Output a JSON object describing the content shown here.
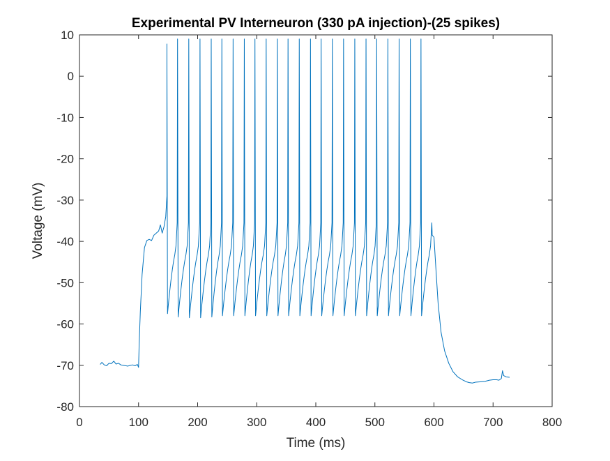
{
  "chart_data": {
    "type": "line",
    "title": "Experimental PV Interneuron (330 pA injection)-(25 spikes)",
    "xlabel": "Time (ms)",
    "ylabel": "Voltage (mV)",
    "xlim": [
      0,
      800
    ],
    "ylim": [
      -80,
      10
    ],
    "xticks": [
      0,
      100,
      200,
      300,
      400,
      500,
      600,
      700,
      800
    ],
    "yticks": [
      -80,
      -70,
      -60,
      -50,
      -40,
      -30,
      -20,
      -10,
      0,
      10
    ],
    "xtick_labels": [
      "0",
      "100",
      "200",
      "300",
      "400",
      "500",
      "600",
      "700",
      "800"
    ],
    "ytick_labels": [
      "-80",
      "-70",
      "-60",
      "-50",
      "-40",
      "-30",
      "-20",
      "-10",
      "0",
      "10"
    ],
    "grid": false,
    "line_color": "#0072BD",
    "spike_count": 25,
    "spike_times_ms": [
      148,
      166,
      185,
      204,
      223,
      241,
      260,
      279,
      297,
      316,
      335,
      353,
      372,
      391,
      409,
      428,
      447,
      466,
      485,
      503,
      522,
      541,
      560,
      578,
      597
    ],
    "spike_peaks_mv": [
      7.8,
      9.0,
      9.0,
      9.0,
      9.0,
      9.0,
      9.0,
      9.0,
      9.0,
      9.0,
      9.0,
      9.0,
      9.0,
      9.0,
      9.0,
      9.0,
      9.0,
      9.0,
      9.0,
      9.0,
      9.0,
      9.0,
      9.0,
      9.0,
      -38.5
    ],
    "trough_mv": [
      -57.5,
      -58.3,
      -58.5,
      -58.5,
      -58.3,
      -58.0,
      -58.0,
      -58.0,
      -58.0,
      -58.0,
      -58.0,
      -58.0,
      -58.0,
      -58.0,
      -58.0,
      -58.0,
      -58.0,
      -58.0,
      -58.0,
      -58.0,
      -58.0,
      -58.0,
      -58.0,
      -58.0
    ],
    "pre_stim": {
      "x": [
        35,
        38,
        42,
        46,
        50,
        54,
        58,
        62,
        66,
        70,
        74,
        78,
        82,
        86,
        90,
        94,
        98,
        100
      ],
      "y": [
        -69.8,
        -69.3,
        -69.9,
        -70.1,
        -69.5,
        -69.6,
        -69.0,
        -69.7,
        -69.5,
        -69.9,
        -70.0,
        -70.1,
        -70.2,
        -70.0,
        -69.9,
        -70.1,
        -69.8,
        -70.5
      ]
    },
    "depolarization": {
      "x": [
        100,
        101,
        103,
        106,
        110,
        114,
        118,
        122,
        126,
        130,
        134,
        137,
        140,
        143,
        146,
        148
      ],
      "y": [
        -70.5,
        -65.0,
        -57.0,
        -48.0,
        -41.5,
        -39.8,
        -39.5,
        -39.8,
        -38.5,
        -38.0,
        -37.5,
        -36.0,
        -38.0,
        -36.5,
        -34.0,
        -29.0
      ]
    },
    "post_stim": {
      "x": [
        597,
        600,
        603,
        607,
        612,
        618,
        625,
        632,
        640,
        648,
        655,
        660,
        665,
        670,
        678,
        686,
        694,
        700,
        706,
        710,
        714,
        716,
        718,
        722,
        728
      ],
      "y": [
        -38.5,
        -39.0,
        -46.0,
        -55.0,
        -62.0,
        -66.5,
        -69.5,
        -71.5,
        -72.8,
        -73.5,
        -74.0,
        -74.2,
        -74.3,
        -74.1,
        -74.0,
        -73.9,
        -73.6,
        -73.5,
        -73.5,
        -73.6,
        -73.2,
        -71.3,
        -72.5,
        -72.8,
        -72.9
      ]
    }
  }
}
